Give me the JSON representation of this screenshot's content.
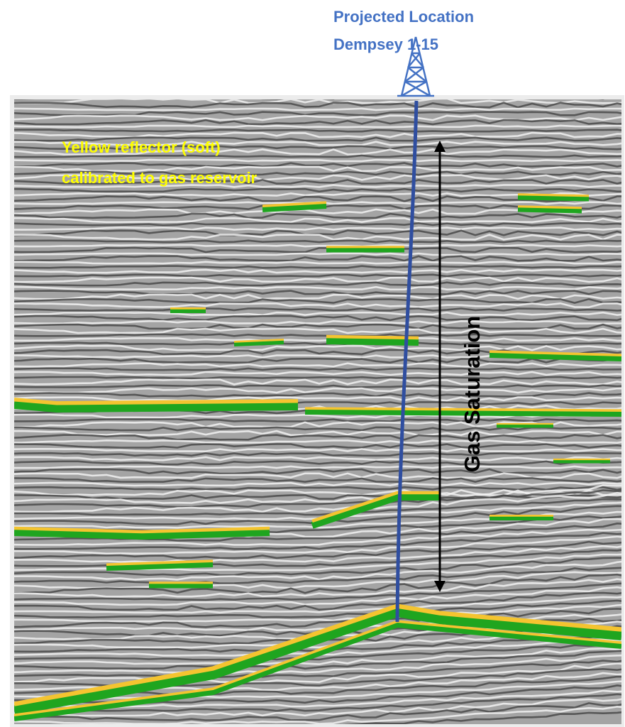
{
  "well_label": {
    "line1": "Projected Location",
    "line2": "Dempsey 1-15"
  },
  "reflector_label": {
    "line1": "Yellow reflector (soft)",
    "line2": "calibrated to gas reservoir"
  },
  "arrow_label": "Gas Saturation"
}
